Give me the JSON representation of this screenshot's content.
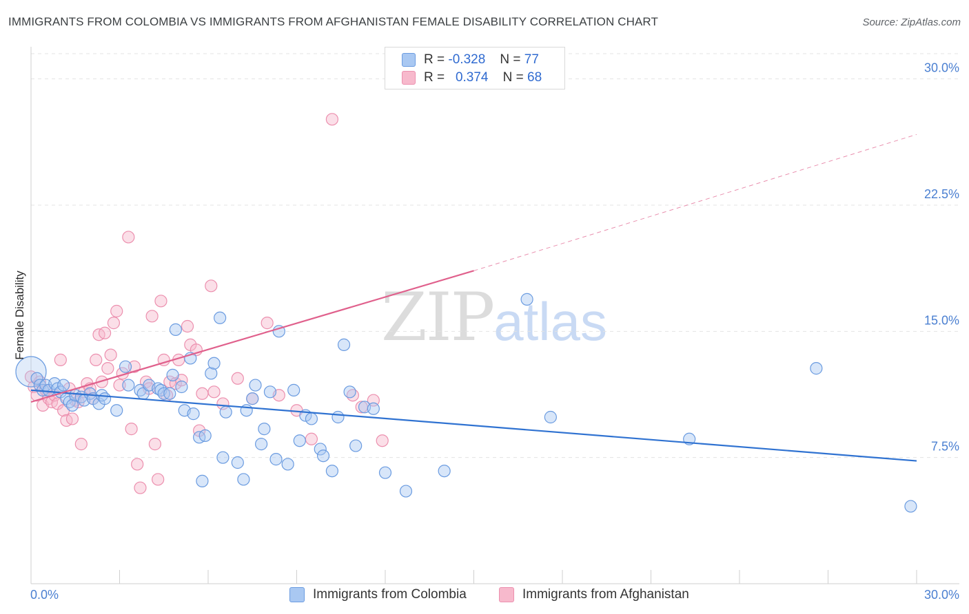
{
  "header": {
    "title": "IMMIGRANTS FROM COLOMBIA VS IMMIGRANTS FROM AFGHANISTAN FEMALE DISABILITY CORRELATION CHART",
    "source": "Source: ZipAtlas.com"
  },
  "watermark": {
    "zip": "ZIP",
    "atlas": "atlas"
  },
  "legend": {
    "rows": [
      {
        "r_label": "R =",
        "r_value": "-0.328",
        "n_label": "N =",
        "n_value": "77"
      },
      {
        "r_label": "R =",
        "r_value": "0.374",
        "n_label": "N =",
        "n_value": "68"
      }
    ]
  },
  "colors": {
    "colombia_fill": "#a9c8f2",
    "colombia_stroke": "#6a9be0",
    "colombia_line": "#2f72d1",
    "afghanistan_fill": "#f7b9cc",
    "afghanistan_stroke": "#ec8fae",
    "afghanistan_line": "#e0608c"
  },
  "chart_data": {
    "type": "scatter",
    "title": "IMMIGRANTS FROM COLOMBIA VS IMMIGRANTS FROM AFGHANISTAN FEMALE DISABILITY CORRELATION CHART",
    "xlabel": "",
    "ylabel": "Female Disability",
    "xlim": [
      0,
      30
    ],
    "ylim": [
      0,
      31.5
    ],
    "x_tick_labels": [
      "0.0%",
      "30.0%"
    ],
    "y_tick_labels": [
      "7.5%",
      "15.0%",
      "22.5%",
      "30.0%"
    ],
    "y_ticks": [
      7.5,
      15.0,
      22.5,
      30.0
    ],
    "grid": true,
    "legend_placement": "top-center",
    "series": [
      {
        "name": "Immigrants from Colombia",
        "r": -0.328,
        "n": 77,
        "trend": {
          "x": [
            0,
            30
          ],
          "y": [
            11.5,
            7.3
          ],
          "dashed_to": null
        },
        "points": [
          [
            0.0,
            12.6
          ],
          [
            0.2,
            12.2
          ],
          [
            0.3,
            11.8
          ],
          [
            0.4,
            11.5
          ],
          [
            0.5,
            11.8
          ],
          [
            0.6,
            11.5
          ],
          [
            0.8,
            11.9
          ],
          [
            0.9,
            11.6
          ],
          [
            1.0,
            11.4
          ],
          [
            1.1,
            11.8
          ],
          [
            1.2,
            11.0
          ],
          [
            1.3,
            10.8
          ],
          [
            1.4,
            10.6
          ],
          [
            1.5,
            11.2
          ],
          [
            1.7,
            11.1
          ],
          [
            1.8,
            10.9
          ],
          [
            2.0,
            11.3
          ],
          [
            2.1,
            11.0
          ],
          [
            2.3,
            10.7
          ],
          [
            2.4,
            11.2
          ],
          [
            2.5,
            11.0
          ],
          [
            2.9,
            10.3
          ],
          [
            3.2,
            12.9
          ],
          [
            3.3,
            11.8
          ],
          [
            3.7,
            11.5
          ],
          [
            3.8,
            11.3
          ],
          [
            4.0,
            11.8
          ],
          [
            4.3,
            11.6
          ],
          [
            4.4,
            11.5
          ],
          [
            4.5,
            11.3
          ],
          [
            4.7,
            11.3
          ],
          [
            4.8,
            12.4
          ],
          [
            4.9,
            15.1
          ],
          [
            5.1,
            11.7
          ],
          [
            5.2,
            10.3
          ],
          [
            5.4,
            13.4
          ],
          [
            5.5,
            10.1
          ],
          [
            5.7,
            8.7
          ],
          [
            5.8,
            6.1
          ],
          [
            5.9,
            8.8
          ],
          [
            6.1,
            12.5
          ],
          [
            6.2,
            13.1
          ],
          [
            6.4,
            15.8
          ],
          [
            6.5,
            7.5
          ],
          [
            6.6,
            10.2
          ],
          [
            7.0,
            7.2
          ],
          [
            7.2,
            6.2
          ],
          [
            7.3,
            10.3
          ],
          [
            7.5,
            11.0
          ],
          [
            7.6,
            11.8
          ],
          [
            7.8,
            8.3
          ],
          [
            7.9,
            9.2
          ],
          [
            8.1,
            11.4
          ],
          [
            8.3,
            7.4
          ],
          [
            8.4,
            15.0
          ],
          [
            8.7,
            7.1
          ],
          [
            8.9,
            11.5
          ],
          [
            9.1,
            8.5
          ],
          [
            9.3,
            10.0
          ],
          [
            9.5,
            9.8
          ],
          [
            9.8,
            8.0
          ],
          [
            9.9,
            7.6
          ],
          [
            10.2,
            6.7
          ],
          [
            10.4,
            9.9
          ],
          [
            10.6,
            14.2
          ],
          [
            10.8,
            11.4
          ],
          [
            11.0,
            8.2
          ],
          [
            11.3,
            10.5
          ],
          [
            11.6,
            10.4
          ],
          [
            12.0,
            6.6
          ],
          [
            12.7,
            5.5
          ],
          [
            14.0,
            6.7
          ],
          [
            16.8,
            16.9
          ],
          [
            17.6,
            9.9
          ],
          [
            22.3,
            8.6
          ],
          [
            26.6,
            12.8
          ],
          [
            29.8,
            4.6
          ]
        ]
      },
      {
        "name": "Immigrants from Afghanistan",
        "r": 0.374,
        "n": 68,
        "trend": {
          "x": [
            0,
            15
          ],
          "y": [
            10.8,
            18.6
          ],
          "dashed_to": [
            30,
            26.7
          ]
        },
        "points": [
          [
            0.0,
            12.3
          ],
          [
            0.1,
            11.7
          ],
          [
            0.2,
            11.2
          ],
          [
            0.3,
            12.0
          ],
          [
            0.4,
            10.6
          ],
          [
            0.5,
            11.5
          ],
          [
            0.6,
            11.0
          ],
          [
            0.7,
            10.8
          ],
          [
            0.8,
            11.2
          ],
          [
            0.9,
            10.7
          ],
          [
            1.0,
            13.3
          ],
          [
            1.1,
            10.3
          ],
          [
            1.2,
            9.7
          ],
          [
            1.3,
            11.6
          ],
          [
            1.4,
            9.8
          ],
          [
            1.5,
            10.9
          ],
          [
            1.6,
            10.8
          ],
          [
            1.7,
            8.3
          ],
          [
            1.8,
            11.4
          ],
          [
            1.9,
            11.9
          ],
          [
            2.0,
            11.6
          ],
          [
            2.1,
            11.0
          ],
          [
            2.2,
            13.3
          ],
          [
            2.3,
            14.8
          ],
          [
            2.4,
            12.0
          ],
          [
            2.5,
            14.9
          ],
          [
            2.6,
            12.8
          ],
          [
            2.7,
            13.6
          ],
          [
            2.8,
            15.5
          ],
          [
            2.9,
            16.2
          ],
          [
            3.0,
            11.8
          ],
          [
            3.1,
            12.5
          ],
          [
            3.3,
            20.6
          ],
          [
            3.4,
            9.2
          ],
          [
            3.5,
            12.9
          ],
          [
            3.6,
            7.1
          ],
          [
            3.7,
            5.7
          ],
          [
            3.9,
            12.0
          ],
          [
            4.0,
            11.6
          ],
          [
            4.1,
            15.9
          ],
          [
            4.2,
            8.3
          ],
          [
            4.3,
            6.2
          ],
          [
            4.4,
            16.8
          ],
          [
            4.5,
            13.3
          ],
          [
            4.6,
            11.2
          ],
          [
            4.7,
            12.0
          ],
          [
            4.9,
            11.9
          ],
          [
            5.0,
            13.3
          ],
          [
            5.1,
            12.1
          ],
          [
            5.3,
            15.3
          ],
          [
            5.4,
            14.2
          ],
          [
            5.6,
            13.9
          ],
          [
            5.7,
            9.1
          ],
          [
            5.8,
            11.3
          ],
          [
            6.1,
            17.7
          ],
          [
            6.2,
            11.4
          ],
          [
            6.5,
            10.7
          ],
          [
            7.0,
            12.2
          ],
          [
            7.5,
            11.0
          ],
          [
            8.0,
            15.5
          ],
          [
            8.4,
            11.2
          ],
          [
            9.0,
            10.3
          ],
          [
            9.5,
            8.6
          ],
          [
            10.2,
            27.6
          ],
          [
            10.9,
            11.2
          ],
          [
            11.2,
            10.5
          ],
          [
            11.6,
            10.9
          ],
          [
            11.9,
            8.5
          ]
        ]
      }
    ]
  },
  "bottom_legend": {
    "items": [
      "Immigrants from Colombia",
      "Immigrants from Afghanistan"
    ]
  }
}
